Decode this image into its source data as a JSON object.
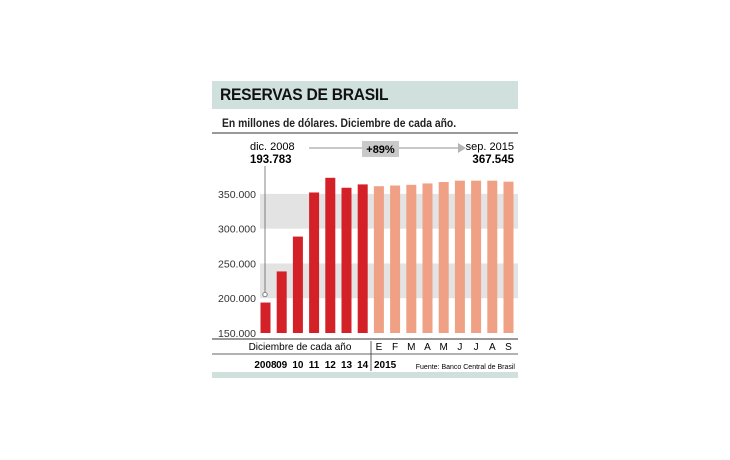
{
  "title": "RESERVAS DE BRASIL",
  "subtitle": "En millones de dólares. Diciembre de cada año.",
  "start_annotation": {
    "label": "dic. 2008",
    "value": "193.783"
  },
  "end_annotation": {
    "label": "sep. 2015",
    "value": "367.545"
  },
  "change_badge": "+89%",
  "xgroup_left_label": "Diciembre de cada año",
  "year_2015_label": "2015",
  "source": "Fuente: Banco Central de Brasil",
  "colors": {
    "annual_bars": "#d42027",
    "monthly_bars": "#f0a084",
    "title_bar": "#cfe0dd",
    "band": "#e3e3e3",
    "badge": "#c9c9c9"
  },
  "chart_data": {
    "type": "bar",
    "title": "RESERVAS DE BRASIL",
    "subtitle": "En millones de dólares. Diciembre de cada año.",
    "categories": [
      "2008",
      "09",
      "10",
      "11",
      "12",
      "13",
      "14",
      "E",
      "F",
      "M",
      "A",
      "M",
      "J",
      "J",
      "A",
      "S"
    ],
    "series": [
      {
        "values": [
          193783,
          238500,
          288600,
          352000,
          373100,
          358800,
          363600,
          null,
          null,
          null,
          null,
          null,
          null,
          null,
          null,
          null
        ]
      },
      {
        "values": [
          null,
          null,
          null,
          null,
          null,
          null,
          null,
          361000,
          362000,
          363000,
          365000,
          367000,
          369000,
          369000,
          369000,
          367545
        ]
      }
    ],
    "yticks": [
      150000,
      200000,
      250000,
      300000,
      350000
    ],
    "ytick_labels": [
      "150.000",
      "200.000",
      "250.000",
      "300.000",
      "350.000"
    ],
    "ylim": [
      150000,
      380000
    ],
    "shaded_bands": [
      [
        200000,
        250000
      ],
      [
        300000,
        350000
      ]
    ],
    "grid": false,
    "legend": "none"
  }
}
